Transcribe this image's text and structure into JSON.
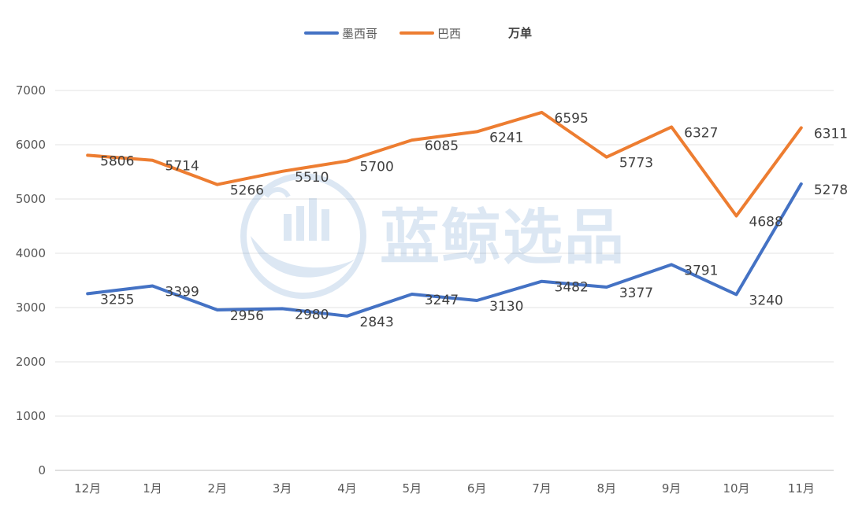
{
  "chart_data": {
    "type": "line",
    "title": "",
    "xlabel": "",
    "ylabel": "",
    "unit_label": "万单",
    "categories": [
      "12月",
      "1月",
      "2月",
      "3月",
      "4月",
      "5月",
      "6月",
      "7月",
      "8月",
      "9月",
      "10月",
      "11月"
    ],
    "series": [
      {
        "name": "墨西哥",
        "color": "#4472c4",
        "values": [
          3255,
          3399,
          2956,
          2980,
          2843,
          3247,
          3130,
          3482,
          3377,
          3791,
          3240,
          5278
        ]
      },
      {
        "name": "巴西",
        "color": "#ed7d31",
        "values": [
          5806,
          5714,
          5266,
          5510,
          5700,
          6085,
          6241,
          6595,
          5773,
          6327,
          4688,
          6311
        ]
      }
    ],
    "ylim": [
      0,
      7000
    ],
    "yticks": [
      0,
      1000,
      2000,
      3000,
      4000,
      5000,
      6000,
      7000
    ],
    "grid": true,
    "legend_position": "top-center",
    "data_labels": true
  },
  "watermark": {
    "text": "蓝鲸选品",
    "icon": "whale-logo-icon",
    "color": "#2e6fb8"
  }
}
